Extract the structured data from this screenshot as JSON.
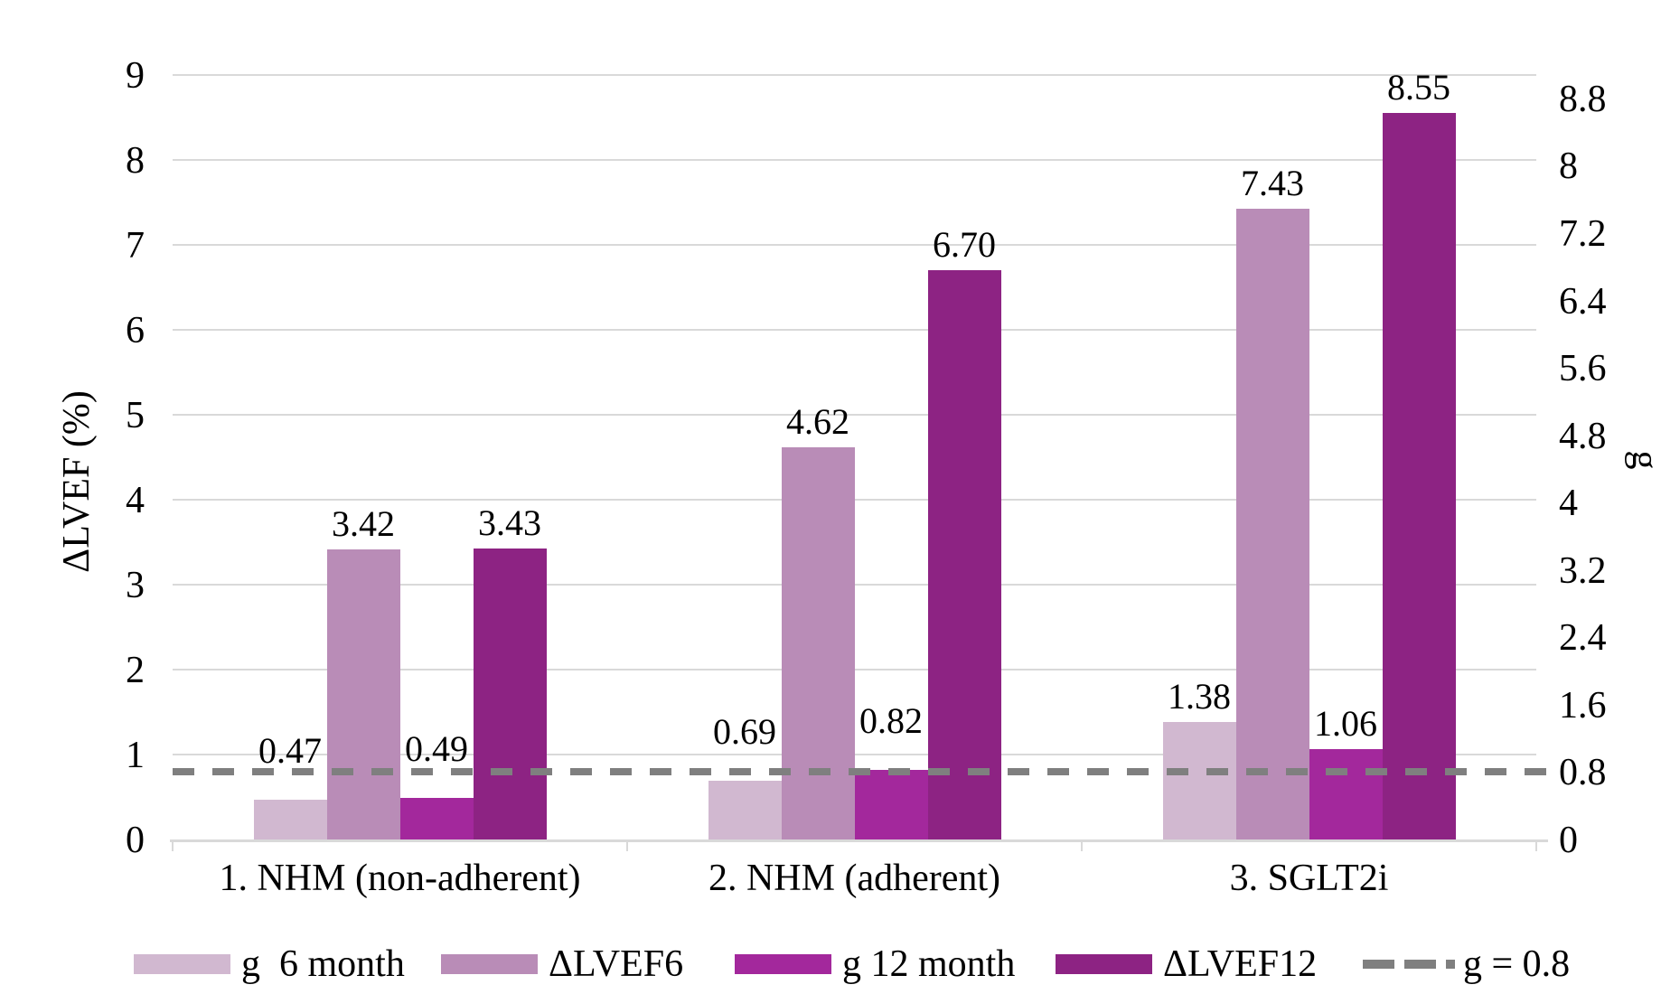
{
  "chart_data": {
    "type": "bar",
    "categories": [
      "1. NHM (non-adherent)",
      "2. NHM (adherent)",
      "3. SGLT2i"
    ],
    "series": [
      {
        "name": "g  6 month",
        "color": "#d1b8d0",
        "values": [
          0.47,
          0.69,
          1.38
        ],
        "value_labels": [
          "0.47",
          "0.69",
          "1.38"
        ]
      },
      {
        "name": "ΔLVEF6",
        "color": "#b98cb7",
        "values": [
          3.42,
          4.62,
          7.43
        ],
        "value_labels": [
          "3.42",
          "4.62",
          "7.43"
        ]
      },
      {
        "name": "g 12 month",
        "color": "#a3289c",
        "values": [
          0.49,
          0.82,
          1.06
        ],
        "value_labels": [
          "0.49",
          "0.82",
          "1.06"
        ]
      },
      {
        "name": "ΔLVEF12",
        "color": "#8d2383",
        "values": [
          3.43,
          6.7,
          8.55
        ],
        "value_labels": [
          "3.43",
          "6.70",
          "8.55"
        ]
      }
    ],
    "reference_line": {
      "label": "g = 0.8",
      "value": 0.8,
      "color": "#7f7f7f",
      "style": "dashed"
    },
    "left_axis": {
      "title": "ΔLVEF (%)",
      "min": 0,
      "max": 9,
      "ticks": [
        "0",
        "1",
        "2",
        "3",
        "4",
        "5",
        "6",
        "7",
        "8",
        "9"
      ]
    },
    "right_axis": {
      "title": "g",
      "min": 0,
      "max": 8.8,
      "ticks": [
        "0",
        "0.8",
        "1.6",
        "2.4",
        "3.2",
        "4",
        "4.8",
        "5.6",
        "6.4",
        "7.2",
        "8",
        "8.8"
      ]
    },
    "gridlines": true,
    "gridline_color": "#d9d9d9",
    "legend_position": "bottom"
  }
}
